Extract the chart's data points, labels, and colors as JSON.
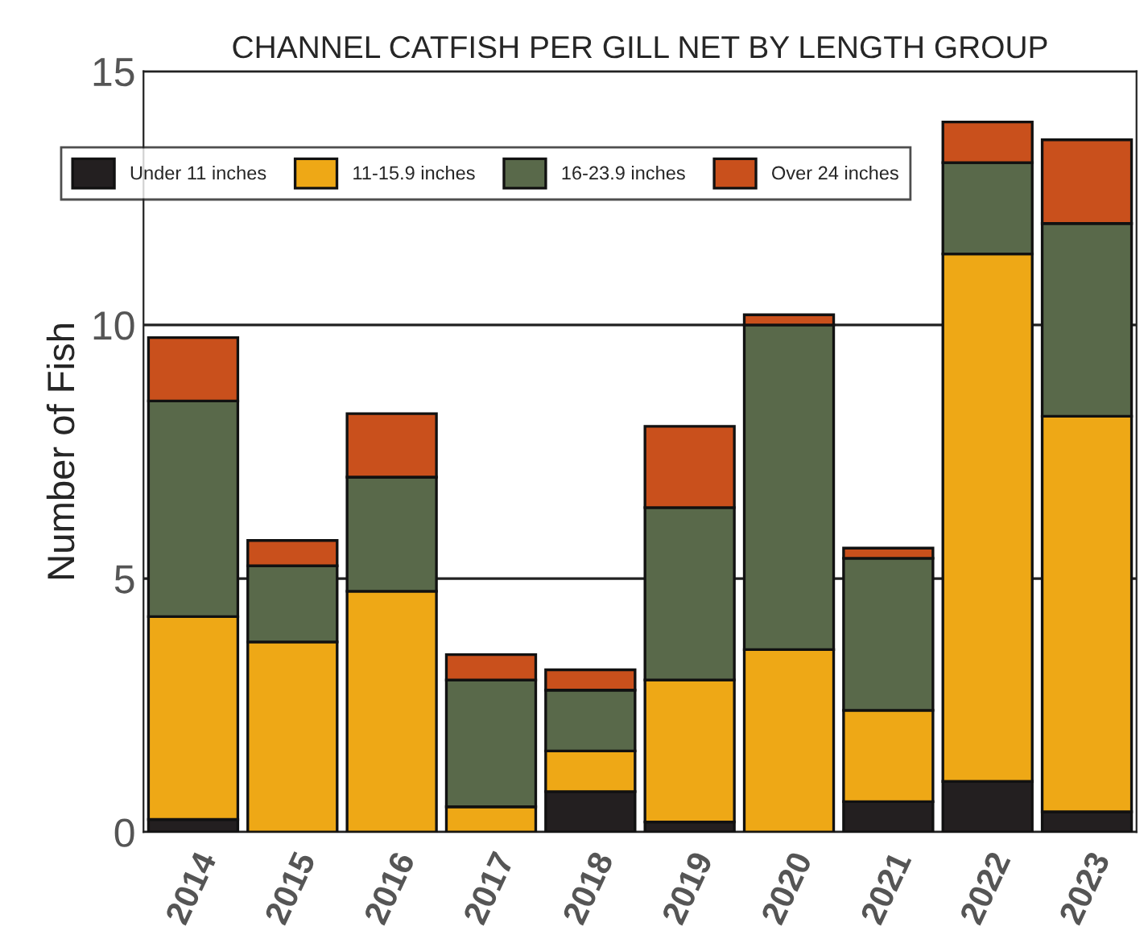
{
  "chart_data": {
    "type": "bar",
    "title": "CHANNEL CATFISH PER GILL NET BY LENGTH GROUP",
    "ylabel": "Number of Fish",
    "categories": [
      "2014",
      "2015",
      "2016",
      "2017",
      "2018",
      "2019",
      "2020",
      "2021",
      "2022",
      "2023"
    ],
    "stacked": true,
    "series": [
      {
        "name": "Under 11 inches",
        "color": "#231f20",
        "values": [
          0.25,
          0,
          0,
          0,
          0.8,
          0.2,
          0,
          0.6,
          1.0,
          0.4
        ]
      },
      {
        "name": "11-15.9 inches",
        "color": "#eea816",
        "values": [
          4.0,
          3.75,
          4.75,
          0.5,
          0.8,
          2.8,
          3.6,
          1.8,
          10.4,
          7.8
        ]
      },
      {
        "name": "16-23.9 inches",
        "color": "#59694a",
        "values": [
          4.25,
          1.5,
          2.25,
          2.5,
          1.2,
          3.4,
          6.4,
          3.0,
          1.8,
          3.8
        ]
      },
      {
        "name": "Over 24 inches",
        "color": "#c9501c",
        "values": [
          1.25,
          0.5,
          1.25,
          0.5,
          0.4,
          1.6,
          0.2,
          0.2,
          0.8,
          1.65
        ]
      }
    ],
    "ylim": [
      0,
      15
    ],
    "yticks": [
      0,
      5,
      10,
      15
    ],
    "grid": "y",
    "legend": "top"
  }
}
